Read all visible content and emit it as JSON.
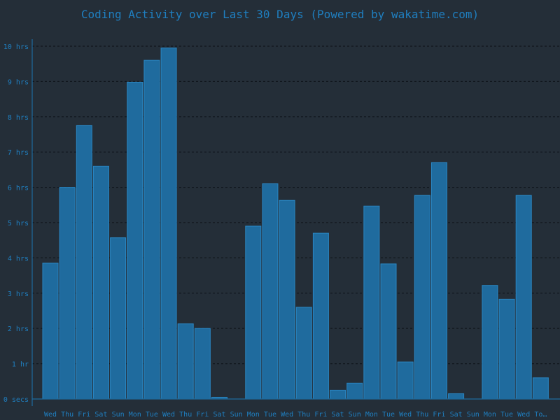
{
  "colors": {
    "background": "#242e38",
    "bar_fill": "#1f6b9e",
    "bar_stroke": "#2a86c2",
    "text": "#1f7fc0",
    "grid": "#10161c",
    "axis": "#1f6b9e"
  },
  "chart_data": {
    "type": "bar",
    "title": "Coding Activity over Last 30 Days (Powered by wakatime.com)",
    "xlabel": "",
    "ylabel": "",
    "ylim": [
      0,
      10.2
    ],
    "grid": true,
    "legend": "none",
    "ytick_values": [
      0,
      1,
      2,
      3,
      4,
      5,
      6,
      7,
      8,
      9,
      10
    ],
    "ytick_labels": [
      "0 secs",
      "1 hr",
      "2 hrs",
      "3 hrs",
      "4 hrs",
      "5 hrs",
      "6 hrs",
      "7 hrs",
      "8 hrs",
      "9 hrs",
      "10 hrs"
    ],
    "categories": [
      "Wed",
      "Thu",
      "Fri",
      "Sat",
      "Sun",
      "Mon",
      "Tue",
      "Wed",
      "Thu",
      "Fri",
      "Sat",
      "Sun",
      "Mon",
      "Tue",
      "Wed",
      "Thu",
      "Fri",
      "Sat",
      "Sun",
      "Mon",
      "Tue",
      "Wed",
      "Thu",
      "Fri",
      "Sat",
      "Sun",
      "Mon",
      "Tue",
      "Wed",
      "To…"
    ],
    "values": [
      3.85,
      6.0,
      7.75,
      6.6,
      4.57,
      8.98,
      9.6,
      9.95,
      2.13,
      2.0,
      0.05,
      0.0,
      4.9,
      6.1,
      5.63,
      2.6,
      4.7,
      0.25,
      0.45,
      5.47,
      3.83,
      1.05,
      5.77,
      6.7,
      0.15,
      0.0,
      3.22,
      2.83,
      5.77,
      0.6
    ]
  }
}
